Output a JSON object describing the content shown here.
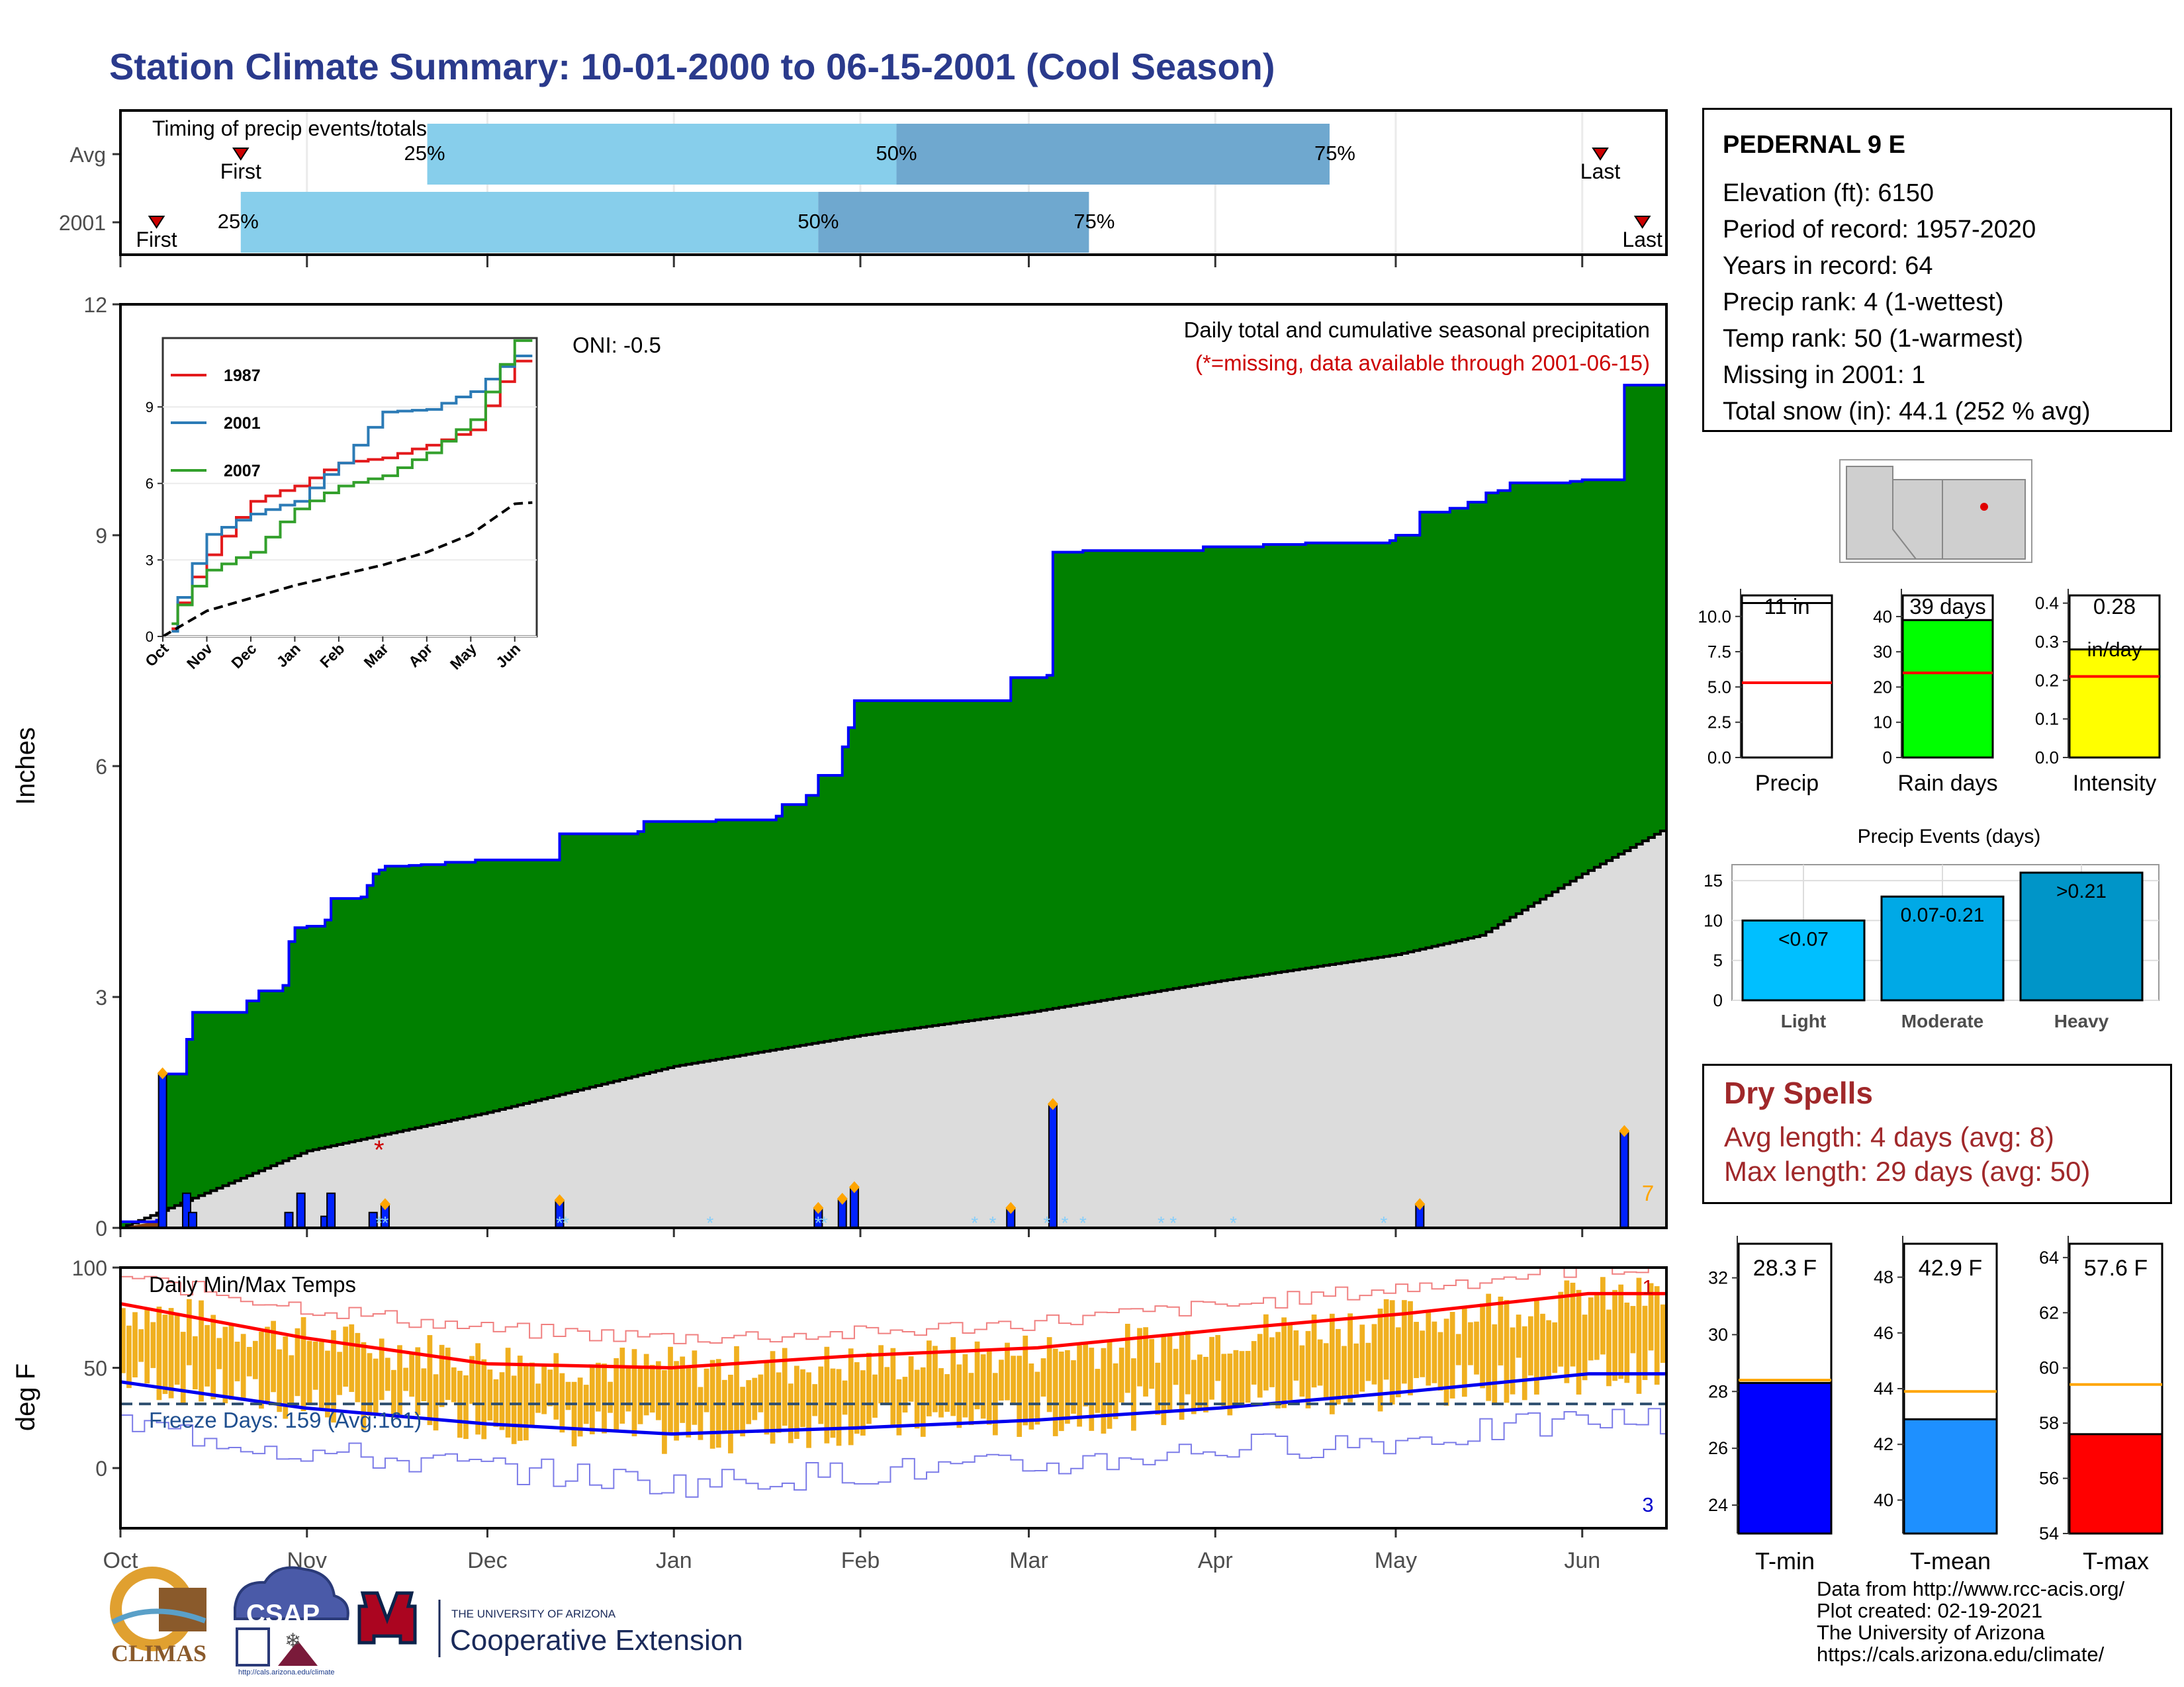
{
  "title": "Station Climate Summary: 10-01-2000 to 06-15-2001 (Cool Season)",
  "timing": {
    "label": "Timing of precip events/totals",
    "rows": [
      {
        "name": "Avg",
        "first_label": "First",
        "last_label": "Last",
        "pct_labels": [
          "25%",
          "50%",
          "75%"
        ]
      },
      {
        "name": "2001",
        "first_label": "First",
        "last_label": "Last",
        "pct_labels": [
          "25%",
          "50%",
          "75%"
        ]
      }
    ],
    "colors": {
      "light": "#87ceeb",
      "dark": "#6fa8cf",
      "marker": "#cc0000"
    }
  },
  "precip_panel": {
    "title_main": "Daily total and cumulative seasonal precipitation",
    "title_missing": "(*=missing, data available through 2001-06-15)",
    "oni": "ONI: -0.5",
    "ylabel": "Inches",
    "yticks": [
      "0",
      "3",
      "6",
      "9",
      "12"
    ],
    "count_label": "7",
    "colors": {
      "wet_fill": "#008000",
      "line": "#0000ff",
      "normal_fill": "#dcdcdc",
      "missing": "#cc0000",
      "event": "#ffa500",
      "snow": "#87cefa"
    }
  },
  "inset": {
    "legend": [
      "1987",
      "2001",
      "2007"
    ],
    "colors": [
      "#e31a1c",
      "#2c7bb6",
      "#33a02c"
    ],
    "yticks": [
      "0",
      "3",
      "6",
      "9"
    ],
    "xticks": [
      "Oct",
      "Nov",
      "Dec",
      "Jan",
      "Feb",
      "Mar",
      "Apr",
      "May",
      "Jun"
    ]
  },
  "temp_panel": {
    "label": "Daily Min/Max Temps",
    "freeze_label": "Freeze Days: 159 (Avg:161)",
    "ylabel": "deg F",
    "yticks": [
      "0",
      "50",
      "100"
    ],
    "count_high": "1",
    "count_low": "3",
    "colors": {
      "bar": "#f0b020",
      "max_avg": "#ff0000",
      "min_avg": "#0000ee"
    }
  },
  "x_axis": {
    "ticks": [
      "Oct",
      "Nov",
      "Dec",
      "Jan",
      "Feb",
      "Mar",
      "Apr",
      "May",
      "Jun"
    ]
  },
  "station": {
    "name": "PEDERNAL 9 E",
    "lines": [
      "Elevation (ft): 6150",
      "Period of record: 1957-2020",
      "Years in record: 64",
      "Precip rank: 4 (1-wettest)",
      "Temp rank: 50 (1-warmest)",
      "Missing in 2001: 1",
      "Total snow (in): 44.1 (252 % avg)"
    ]
  },
  "mini_bars": [
    {
      "label": "Precip",
      "value_label": "11 in",
      "color": "#ffffff",
      "yticks": [
        "0.0",
        "2.5",
        "5.0",
        "7.5",
        "10.0"
      ]
    },
    {
      "label": "Rain days",
      "value_label": "39 days",
      "color": "#00ff00",
      "yticks": [
        "0",
        "10",
        "20",
        "30",
        "40"
      ]
    },
    {
      "label": "Intensity",
      "value_label": "0.28",
      "unit_label": "in/day",
      "color": "#ffff00",
      "yticks": [
        "0.0",
        "0.1",
        "0.2",
        "0.3",
        "0.4"
      ]
    }
  ],
  "events": {
    "title": "Precip Events (days)",
    "categories": [
      "Light",
      "Moderate",
      "Heavy"
    ],
    "labels": [
      "<0.07",
      "0.07-0.21",
      ">0.21"
    ],
    "yticks": [
      "0",
      "5",
      "10",
      "15"
    ],
    "colors": [
      "#00bfff",
      "#00a9e6",
      "#0095c8"
    ]
  },
  "dry_spells": {
    "title": "Dry Spells",
    "avg": "Avg length: 4 days (avg: 8)",
    "max": "Max length: 29 days (avg: 50)"
  },
  "temp_bars": [
    {
      "label": "T-min",
      "value_label": "28.3 F",
      "color": "#0000ff",
      "yticks": [
        "24",
        "26",
        "28",
        "30",
        "32"
      ]
    },
    {
      "label": "T-mean",
      "value_label": "42.9 F",
      "color": "#1e90ff",
      "yticks": [
        "40",
        "42",
        "44",
        "46",
        "48"
      ]
    },
    {
      "label": "T-max",
      "value_label": "57.6 F",
      "color": "#ff0000",
      "yticks": [
        "54",
        "56",
        "58",
        "60",
        "62",
        "64"
      ]
    }
  ],
  "credits": [
    "Data from http://www.rcc-acis.org/",
    "Plot created: 02-19-2021",
    "The University of Arizona",
    "https://cals.arizona.edu/climate/"
  ],
  "logos": {
    "climas": "CLIMAS",
    "csap": "CSAP",
    "csap_url": "http://cals.arizona.edu/climate",
    "ua_small": "THE UNIVERSITY OF ARIZONA",
    "ua_big": "Cooperative Extension"
  },
  "chart_data": [
    {
      "type": "bar",
      "title": "Timing of precip events/totals",
      "categories": [
        "Avg",
        "2001"
      ],
      "series": [
        {
          "name": "Avg",
          "values": {
            "first": "Oct 21",
            "p25": "Nov 21",
            "p50": "Feb 8",
            "p75": "Apr 20",
            "last": "Jun 5"
          }
        },
        {
          "name": "2001",
          "values": {
            "first": "Oct 7",
            "p25": "Oct 21",
            "p50": "Jan 25",
            "p75": "Mar 5",
            "last": "Jun 12"
          }
        }
      ]
    },
    {
      "type": "area",
      "title": "Daily total and cumulative seasonal precipitation",
      "xlabel": "",
      "ylabel": "Inches",
      "ylim": [
        0,
        12
      ],
      "x_range": [
        "2000-10-01",
        "2001-06-15"
      ],
      "series": [
        {
          "name": "",
          "points": [
            [
              "2000-10-01",
              0.08
            ],
            [
              "2000-10-07",
              0.1
            ],
            [
              "2000-10-08",
              2.0
            ],
            [
              "2000-10-12",
              2.45
            ],
            [
              "2000-10-13",
              2.8
            ],
            [
              "2000-10-21",
              2.8
            ],
            [
              "2000-10-22",
              2.95
            ],
            [
              "2000-10-23",
              2.95
            ],
            [
              "2000-10-24",
              3.08
            ],
            [
              "2000-10-27",
              3.08
            ],
            [
              "2000-10-28",
              3.15
            ],
            [
              "2000-10-29",
              3.72
            ],
            [
              "2000-10-30",
              3.9
            ],
            [
              "2000-10-31",
              3.9
            ],
            [
              "2000-11-01",
              3.92
            ],
            [
              "2000-11-04",
              4.0
            ],
            [
              "2000-11-05",
              4.28
            ],
            [
              "2000-11-10",
              4.3
            ],
            [
              "2000-11-11",
              4.45
            ],
            [
              "2000-11-12",
              4.6
            ],
            [
              "2000-11-13",
              4.65
            ],
            [
              "2000-11-14",
              4.7
            ],
            [
              "2000-11-18",
              4.71
            ],
            [
              "2000-11-20",
              4.72
            ],
            [
              "2000-11-24",
              4.75
            ],
            [
              "2000-11-29",
              4.78
            ],
            [
              "2000-12-12",
              4.78
            ],
            [
              "2000-12-13",
              5.12
            ],
            [
              "2000-12-26",
              5.15
            ],
            [
              "2000-12-27",
              5.28
            ],
            [
              "2001-01-08",
              5.3
            ],
            [
              "2001-01-18",
              5.35
            ],
            [
              "2001-01-19",
              5.5
            ],
            [
              "2001-01-23",
              5.62
            ],
            [
              "2001-01-24",
              5.62
            ],
            [
              "2001-01-25",
              5.88
            ],
            [
              "2001-01-29",
              6.25
            ],
            [
              "2001-01-30",
              6.5
            ],
            [
              "2001-01-31",
              6.85
            ],
            [
              "2001-02-20",
              6.85
            ],
            [
              "2001-02-25",
              6.85
            ],
            [
              "2001-02-26",
              7.15
            ],
            [
              "2001-03-04",
              7.18
            ],
            [
              "2001-03-05",
              8.78
            ],
            [
              "2001-03-10",
              8.8
            ],
            [
              "2001-03-20",
              8.8
            ],
            [
              "2001-03-30",
              8.85
            ],
            [
              "2001-04-09",
              8.88
            ],
            [
              "2001-04-16",
              8.9
            ],
            [
              "2001-04-30",
              8.93
            ],
            [
              "2001-05-01",
              9.0
            ],
            [
              "2001-05-05",
              9.3
            ],
            [
              "2001-05-10",
              9.35
            ],
            [
              "2001-05-13",
              9.43
            ],
            [
              "2001-05-16",
              9.55
            ],
            [
              "2001-05-18",
              9.58
            ],
            [
              "2001-05-20",
              9.68
            ],
            [
              "2001-05-30",
              9.7
            ],
            [
              "2001-06-01",
              9.72
            ],
            [
              "2001-06-07",
              9.72
            ],
            [
              "2001-06-08",
              10.95
            ],
            [
              "2001-06-15",
              10.95
            ]
          ]
        },
        {
          "name": "",
          "points": [
            [
              "2000-10-01",
              0.0
            ],
            [
              "2000-11-01",
              1.0
            ],
            [
              "2000-12-01",
              1.5
            ],
            [
              "2001-01-01",
              2.1
            ],
            [
              "2001-02-01",
              2.5
            ],
            [
              "2001-03-01",
              2.8
            ],
            [
              "2001-04-01",
              3.2
            ],
            [
              "2001-05-01",
              3.55
            ],
            [
              "2001-05-15",
              3.8
            ],
            [
              "2001-06-01",
              4.6
            ],
            [
              "2001-06-15",
              5.2
            ]
          ]
        }
      ],
      "daily_bars": [
        {
          "x": "2000-10-08",
          "y": 2.0
        },
        {
          "x": "2000-10-12",
          "y": 0.45
        },
        {
          "x": "2000-10-13",
          "y": 0.2
        },
        {
          "x": "2000-10-29",
          "y": 0.2
        },
        {
          "x": "2000-10-31",
          "y": 0.45
        },
        {
          "x": "2000-11-04",
          "y": 0.15
        },
        {
          "x": "2000-11-05",
          "y": 0.45
        },
        {
          "x": "2000-11-12",
          "y": 0.2
        },
        {
          "x": "2000-11-14",
          "y": 0.3
        },
        {
          "x": "2000-12-13",
          "y": 0.35
        },
        {
          "x": "2001-01-25",
          "y": 0.25
        },
        {
          "x": "2001-01-29",
          "y": 0.37
        },
        {
          "x": "2001-01-31",
          "y": 0.52
        },
        {
          "x": "2001-02-26",
          "y": 0.25
        },
        {
          "x": "2001-03-05",
          "y": 1.6
        },
        {
          "x": "2001-05-05",
          "y": 0.3
        },
        {
          "x": "2001-06-08",
          "y": 1.25
        }
      ],
      "missing": [
        "2000-11-13"
      ]
    },
    {
      "type": "line",
      "title": "",
      "ylim": [
        0,
        11.7
      ],
      "x": [
        "Oct",
        "Nov",
        "Dec",
        "Jan",
        "Feb",
        "Mar",
        "Apr",
        "May",
        "Jun"
      ],
      "series": [
        {
          "name": "1987",
          "values": [
            0.3,
            3.2,
            5.3,
            5.9,
            6.8,
            7.0,
            7.5,
            8.1,
            10.8
          ]
        },
        {
          "name": "2001",
          "values": [
            0.2,
            4.0,
            4.8,
            5.3,
            6.8,
            8.8,
            8.9,
            9.6,
            11.0
          ]
        },
        {
          "name": "2007",
          "values": [
            0.5,
            2.6,
            3.3,
            5.0,
            5.9,
            6.3,
            7.2,
            8.5,
            11.6
          ]
        },
        {
          "name": "",
          "values": [
            0.0,
            1.0,
            1.5,
            2.0,
            2.4,
            2.8,
            3.3,
            4.0,
            5.2
          ]
        }
      ]
    },
    {
      "type": "bar",
      "title": "Daily Min/Max Temps",
      "ylabel": "deg F",
      "ylim": [
        -30,
        100
      ],
      "x": [
        "Oct",
        "Nov",
        "Dec",
        "Jan",
        "Feb",
        "Mar",
        "Apr",
        "May",
        "Jun"
      ],
      "series": [
        {
          "name": "",
          "values": [
            80,
            65,
            54,
            50,
            52,
            58,
            66,
            75,
            85
          ]
        },
        {
          "name": "",
          "values": [
            46,
            32,
            24,
            16,
            22,
            25,
            34,
            38,
            48
          ]
        },
        {
          "name": "",
          "values": [
            82,
            65,
            52,
            50,
            56,
            60,
            69,
            77,
            87
          ]
        },
        {
          "name": "",
          "values": [
            43,
            30,
            22,
            17,
            20,
            24,
            30,
            38,
            47
          ]
        }
      ],
      "freeze_line": 32
    },
    {
      "type": "bar",
      "categories": [
        "Precip",
        "Rain days",
        "Intensity"
      ],
      "series": [
        {
          "name": "",
          "values": [
            10.95,
            39,
            0.28
          ]
        },
        {
          "name": "",
          "values": [
            5.3,
            24,
            0.21
          ]
        }
      ]
    },
    {
      "type": "bar",
      "title": "Precip Events (days)",
      "categories": [
        "Light",
        "Moderate",
        "Heavy"
      ],
      "values": [
        10,
        13,
        16
      ],
      "ylim": [
        0,
        17
      ]
    },
    {
      "type": "bar",
      "categories": [
        "T-min",
        "T-mean",
        "T-max"
      ],
      "series": [
        {
          "name": "",
          "values": [
            28.3,
            42.9,
            57.6
          ]
        },
        {
          "name": "",
          "values": [
            28.4,
            43.9,
            59.4
          ]
        }
      ]
    }
  ]
}
